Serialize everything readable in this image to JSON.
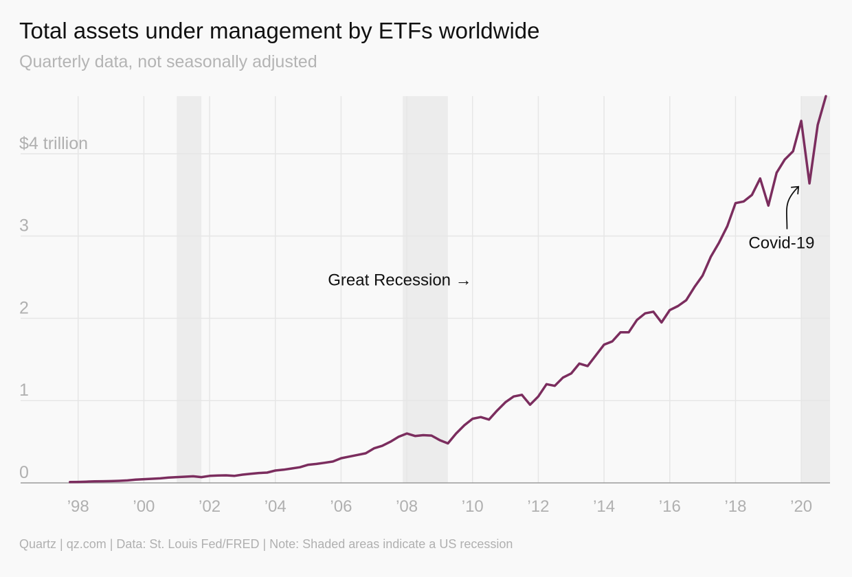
{
  "header": {
    "title": "Total assets under management by ETFs worldwide",
    "subtitle": "Quarterly data, not seasonally adjusted"
  },
  "footer": {
    "source": "Quartz | qz.com | Data: St. Louis Fed/FRED | Note: Shaded areas indicate a US recession"
  },
  "colors": {
    "line": "#7b2d5e",
    "recession": "#ececec",
    "grid": "#e6e6e6",
    "axis": "#9a9a9a"
  },
  "chart_data": {
    "type": "line",
    "title": "Total assets under management by ETFs worldwide",
    "subtitle": "Quarterly data, not seasonally adjusted",
    "xlabel": "",
    "ylabel": "",
    "xlim": [
      1996.25,
      2020.875
    ],
    "ylim": [
      0,
      4.7
    ],
    "grid": true,
    "y_ticks": [
      {
        "value": 0,
        "label": "0"
      },
      {
        "value": 1,
        "label": "1"
      },
      {
        "value": 2,
        "label": "2"
      },
      {
        "value": 3,
        "label": "3"
      },
      {
        "value": 4,
        "label": "$4 trillion"
      }
    ],
    "x_ticks": [
      {
        "value": 1998,
        "label": "’98"
      },
      {
        "value": 2000,
        "label": "’00"
      },
      {
        "value": 2002,
        "label": "’02"
      },
      {
        "value": 2004,
        "label": "’04"
      },
      {
        "value": 2006,
        "label": "’06"
      },
      {
        "value": 2008,
        "label": "’08"
      },
      {
        "value": 2010,
        "label": "’10"
      },
      {
        "value": 2012,
        "label": "’12"
      },
      {
        "value": 2014,
        "label": "’14"
      },
      {
        "value": 2016,
        "label": "’16"
      },
      {
        "value": 2018,
        "label": "’18"
      },
      {
        "value": 2020,
        "label": "’20"
      }
    ],
    "recessions": [
      {
        "start": 2001.0,
        "end": 2001.75
      },
      {
        "start": 2007.875,
        "end": 2009.25
      },
      {
        "start": 2020.0,
        "end": 2020.875
      }
    ],
    "annotations": [
      {
        "text": "Great Recession",
        "arrow": "→",
        "x": 2005.6,
        "y": 2.4
      },
      {
        "text": "Covid-19",
        "x": 2019.4,
        "y": 2.85,
        "points_to": {
          "x": 2020.0,
          "y": 3.65
        }
      }
    ],
    "series": [
      {
        "values": [
          [
            1997.75,
            0.01
          ],
          [
            1998.0,
            0.012
          ],
          [
            1998.25,
            0.015
          ],
          [
            1998.5,
            0.018
          ],
          [
            1998.75,
            0.02
          ],
          [
            1999.0,
            0.022
          ],
          [
            1999.25,
            0.025
          ],
          [
            1999.5,
            0.03
          ],
          [
            1999.75,
            0.04
          ],
          [
            2000.0,
            0.045
          ],
          [
            2000.25,
            0.05
          ],
          [
            2000.5,
            0.055
          ],
          [
            2000.75,
            0.065
          ],
          [
            2001.0,
            0.07
          ],
          [
            2001.25,
            0.075
          ],
          [
            2001.5,
            0.08
          ],
          [
            2001.75,
            0.07
          ],
          [
            2002.0,
            0.085
          ],
          [
            2002.25,
            0.09
          ],
          [
            2002.5,
            0.092
          ],
          [
            2002.75,
            0.085
          ],
          [
            2003.0,
            0.1
          ],
          [
            2003.25,
            0.11
          ],
          [
            2003.5,
            0.12
          ],
          [
            2003.75,
            0.125
          ],
          [
            2004.0,
            0.15
          ],
          [
            2004.25,
            0.16
          ],
          [
            2004.5,
            0.175
          ],
          [
            2004.75,
            0.19
          ],
          [
            2005.0,
            0.22
          ],
          [
            2005.25,
            0.23
          ],
          [
            2005.5,
            0.245
          ],
          [
            2005.75,
            0.26
          ],
          [
            2006.0,
            0.3
          ],
          [
            2006.25,
            0.32
          ],
          [
            2006.5,
            0.34
          ],
          [
            2006.75,
            0.36
          ],
          [
            2007.0,
            0.42
          ],
          [
            2007.25,
            0.45
          ],
          [
            2007.5,
            0.5
          ],
          [
            2007.75,
            0.56
          ],
          [
            2008.0,
            0.6
          ],
          [
            2008.25,
            0.57
          ],
          [
            2008.5,
            0.58
          ],
          [
            2008.75,
            0.575
          ],
          [
            2009.0,
            0.52
          ],
          [
            2009.25,
            0.48
          ],
          [
            2009.5,
            0.6
          ],
          [
            2009.75,
            0.7
          ],
          [
            2010.0,
            0.78
          ],
          [
            2010.25,
            0.8
          ],
          [
            2010.5,
            0.77
          ],
          [
            2010.75,
            0.88
          ],
          [
            2011.0,
            0.98
          ],
          [
            2011.25,
            1.05
          ],
          [
            2011.5,
            1.07
          ],
          [
            2011.75,
            0.95
          ],
          [
            2012.0,
            1.05
          ],
          [
            2012.25,
            1.2
          ],
          [
            2012.5,
            1.18
          ],
          [
            2012.75,
            1.28
          ],
          [
            2013.0,
            1.33
          ],
          [
            2013.25,
            1.45
          ],
          [
            2013.5,
            1.42
          ],
          [
            2013.75,
            1.55
          ],
          [
            2014.0,
            1.68
          ],
          [
            2014.25,
            1.72
          ],
          [
            2014.5,
            1.83
          ],
          [
            2014.75,
            1.83
          ],
          [
            2015.0,
            1.98
          ],
          [
            2015.25,
            2.06
          ],
          [
            2015.5,
            2.08
          ],
          [
            2015.75,
            1.95
          ],
          [
            2016.0,
            2.1
          ],
          [
            2016.25,
            2.15
          ],
          [
            2016.5,
            2.22
          ],
          [
            2016.75,
            2.38
          ],
          [
            2017.0,
            2.52
          ],
          [
            2017.25,
            2.75
          ],
          [
            2017.5,
            2.92
          ],
          [
            2017.75,
            3.12
          ],
          [
            2018.0,
            3.4
          ],
          [
            2018.25,
            3.42
          ],
          [
            2018.5,
            3.5
          ],
          [
            2018.75,
            3.7
          ],
          [
            2019.0,
            3.37
          ],
          [
            2019.25,
            3.77
          ],
          [
            2019.5,
            3.93
          ],
          [
            2019.75,
            4.03
          ],
          [
            2020.0,
            4.4
          ],
          [
            2020.25,
            3.64
          ],
          [
            2020.5,
            4.35
          ],
          [
            2020.75,
            4.7
          ]
        ]
      }
    ]
  }
}
